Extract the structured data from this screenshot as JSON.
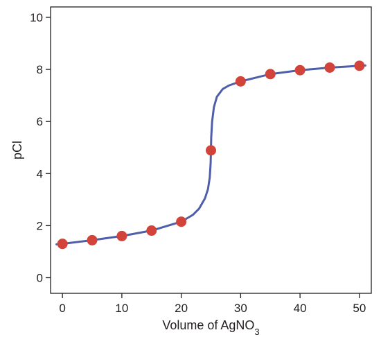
{
  "chart_data": {
    "type": "line",
    "title": "",
    "xlabel": "Volume of AgNO",
    "xlabel_subscript": "3",
    "ylabel": "pCl",
    "xlim": [
      -2,
      52
    ],
    "ylim": [
      -0.6,
      10.4
    ],
    "xticks": [
      0,
      10,
      20,
      30,
      40,
      50
    ],
    "yticks": [
      0,
      2,
      4,
      6,
      8,
      10
    ],
    "grid": false,
    "legend": "none",
    "colors": {
      "curve": "#4f5ea8",
      "points": "#d2433a",
      "axis": "#231f20"
    },
    "series": [
      {
        "kind": "scatter",
        "x": [
          0,
          5,
          10,
          15,
          20,
          25,
          30,
          35,
          40,
          45,
          50
        ],
        "y": [
          1.3,
          1.44,
          1.6,
          1.81,
          2.15,
          4.89,
          7.54,
          7.82,
          7.97,
          8.07,
          8.14
        ]
      },
      {
        "kind": "curve",
        "x": [
          -1,
          0,
          5,
          10,
          15,
          20,
          22,
          23,
          24,
          24.5,
          24.8,
          24.95,
          25,
          25.05,
          25.2,
          25.5,
          26,
          27,
          28,
          30,
          35,
          40,
          45,
          50,
          51
        ],
        "y": [
          1.28,
          1.3,
          1.44,
          1.6,
          1.81,
          2.15,
          2.42,
          2.65,
          3.05,
          3.4,
          3.85,
          4.4,
          4.89,
          5.4,
          6.0,
          6.55,
          6.95,
          7.25,
          7.38,
          7.54,
          7.82,
          7.97,
          8.07,
          8.14,
          8.15
        ]
      }
    ]
  }
}
